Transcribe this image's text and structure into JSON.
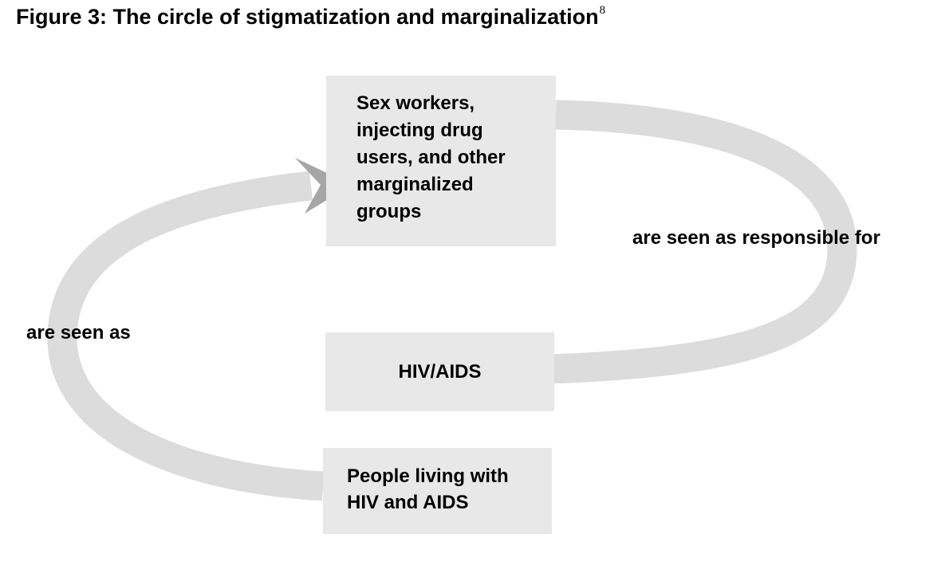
{
  "title": {
    "text": "Figure 3: The circle of stigmatization and marginalization",
    "footnote": "8"
  },
  "colors": {
    "arrow": "#dcdcdc",
    "arrowhead": "#a6a6a6",
    "box": "#e8e8e8",
    "text": "#000000"
  },
  "nodes": {
    "groups": {
      "lines": [
        "Sex workers,",
        "injecting drug",
        "users, and other",
        "marginalized",
        "groups"
      ]
    },
    "hiv": {
      "label": "HIV/AIDS"
    },
    "plwha": {
      "lines": [
        "People living with",
        "HIV and AIDS"
      ]
    }
  },
  "edges": {
    "responsible": "are seen as responsible for",
    "seen_as": "are seen as"
  }
}
